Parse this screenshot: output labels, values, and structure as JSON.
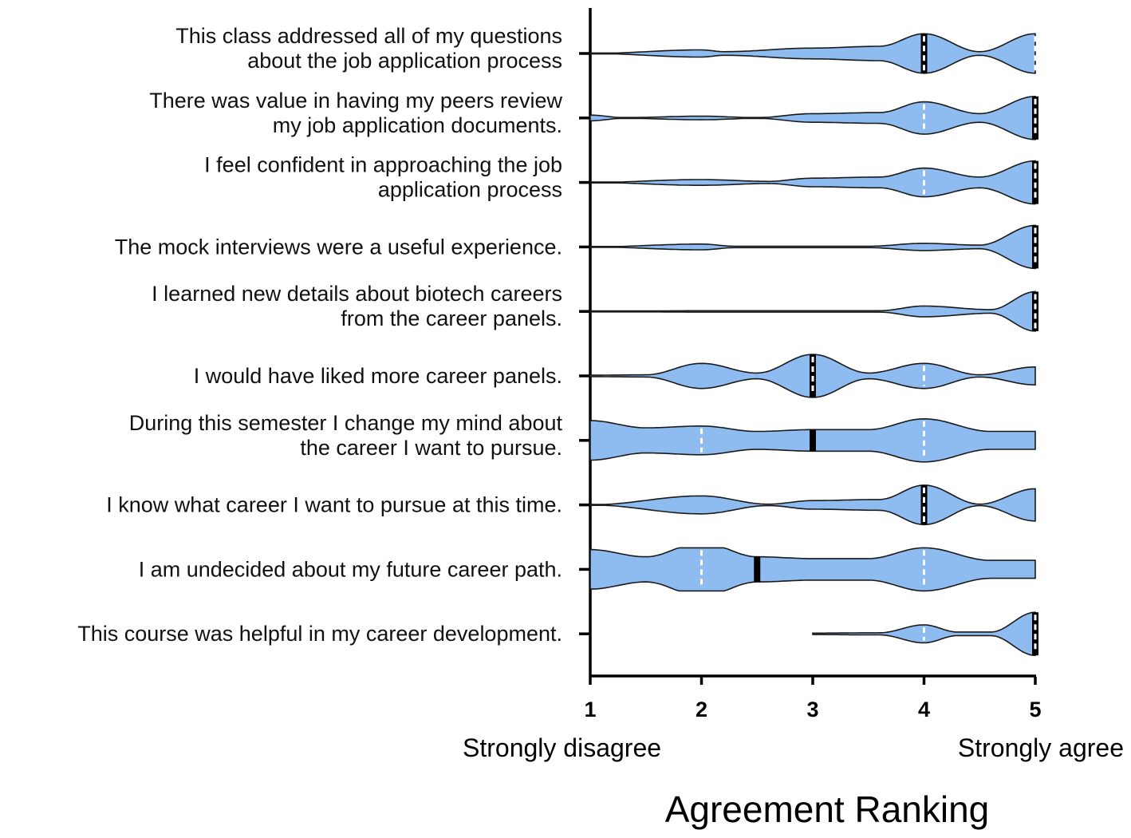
{
  "chart_data": {
    "type": "violin",
    "orientation": "horizontal",
    "xlabel": "Agreement Ranking",
    "xlim": [
      1,
      5
    ],
    "ticks": [
      "1",
      "2",
      "3",
      "4",
      "5"
    ],
    "anchors": {
      "low": "Strongly disagree",
      "high": "Strongly agree"
    },
    "colors": {
      "fill": "#8fbcf0",
      "stroke": "#1a1a1a",
      "median": "#000000",
      "quartile": "#ffffff"
    },
    "categories": [
      {
        "lines": [
          "This class addressed all of my questions",
          "about the job application process"
        ],
        "median": 4,
        "quartiles": [
          4,
          5
        ],
        "density": [
          [
            1,
            0
          ],
          [
            2,
            0.1
          ],
          [
            2.2,
            0.05
          ],
          [
            3,
            0.15
          ],
          [
            3.6,
            0.2
          ],
          [
            4,
            0.55
          ],
          [
            4.5,
            0.05
          ],
          [
            5,
            0.55
          ]
        ]
      },
      {
        "lines": [
          "There was value in having my peers review",
          "my job application documents."
        ],
        "median": 5,
        "quartiles": [
          4,
          5
        ],
        "density": [
          [
            1,
            0.08
          ],
          [
            1.3,
            0.01
          ],
          [
            2,
            0.05
          ],
          [
            2.5,
            0.01
          ],
          [
            3,
            0.12
          ],
          [
            3.6,
            0.15
          ],
          [
            4,
            0.45
          ],
          [
            4.5,
            0.12
          ],
          [
            5,
            0.6
          ]
        ]
      },
      {
        "lines": [
          "I feel confident in approaching the job",
          "application process"
        ],
        "median": 5,
        "quartiles": [
          4,
          5
        ],
        "density": [
          [
            1,
            0
          ],
          [
            2,
            0.08
          ],
          [
            2.6,
            0.03
          ],
          [
            3,
            0.12
          ],
          [
            3.6,
            0.15
          ],
          [
            4,
            0.4
          ],
          [
            4.5,
            0.15
          ],
          [
            5,
            0.6
          ]
        ]
      },
      {
        "lines": [
          "The mock interviews were a useful experience."
        ],
        "median": 5,
        "quartiles": [
          5,
          5
        ],
        "density": [
          [
            1,
            0
          ],
          [
            2,
            0.08
          ],
          [
            2.3,
            0.02
          ],
          [
            3.5,
            0.02
          ],
          [
            4,
            0.1
          ],
          [
            4.5,
            0.05
          ],
          [
            5,
            0.6
          ]
        ]
      },
      {
        "lines": [
          "I learned new details about biotech careers",
          "from the career panels."
        ],
        "median": 5,
        "quartiles": [
          5,
          5
        ],
        "density": [
          [
            1,
            0
          ],
          [
            2,
            0.02
          ],
          [
            3.6,
            0.02
          ],
          [
            4,
            0.15
          ],
          [
            4.6,
            0.05
          ],
          [
            5,
            0.55
          ]
        ]
      },
      {
        "lines": [
          "I would have liked more career panels."
        ],
        "median": 3,
        "quartiles": [
          3,
          4
        ],
        "density": [
          [
            1,
            0.02
          ],
          [
            1.5,
            0.03
          ],
          [
            2,
            0.35
          ],
          [
            2.5,
            0.08
          ],
          [
            3,
            0.6
          ],
          [
            3.5,
            0.08
          ],
          [
            4,
            0.35
          ],
          [
            4.5,
            0.03
          ],
          [
            5,
            0.25
          ]
        ]
      },
      {
        "lines": [
          "During this semester I change my mind about",
          "the career I want to pursue."
        ],
        "median": 3,
        "quartiles": [
          2,
          4
        ],
        "density": [
          [
            1,
            0.55
          ],
          [
            1.5,
            0.35
          ],
          [
            2,
            0.4
          ],
          [
            2.5,
            0.25
          ],
          [
            3,
            0.3
          ],
          [
            3.5,
            0.3
          ],
          [
            4,
            0.6
          ],
          [
            4.6,
            0.25
          ],
          [
            5,
            0.25
          ]
        ]
      },
      {
        "lines": [
          "I know what career I want to pursue at this time."
        ],
        "median": 4,
        "quartiles": [
          4,
          4
        ],
        "density": [
          [
            1,
            0
          ],
          [
            2,
            0.25
          ],
          [
            2.6,
            0.02
          ],
          [
            3,
            0.12
          ],
          [
            3.6,
            0.15
          ],
          [
            4,
            0.55
          ],
          [
            4.5,
            0.02
          ],
          [
            5,
            0.45
          ]
        ]
      },
      {
        "lines": [
          "I am undecided about my future career path."
        ],
        "median": 2.5,
        "quartiles": [
          2,
          4
        ],
        "density": [
          [
            1,
            0.55
          ],
          [
            1.5,
            0.35
          ],
          [
            2,
            0.75
          ],
          [
            2.5,
            0.35
          ],
          [
            3,
            0.3
          ],
          [
            3.5,
            0.3
          ],
          [
            4,
            0.6
          ],
          [
            4.6,
            0.25
          ],
          [
            5,
            0.25
          ]
        ]
      },
      {
        "lines": [
          "This course was helpful in my career development."
        ],
        "median": 5,
        "quartiles": [
          4,
          5
        ],
        "density": [
          [
            3,
            0.02
          ],
          [
            3.6,
            0.03
          ],
          [
            4,
            0.25
          ],
          [
            4.3,
            0.05
          ],
          [
            4.6,
            0.05
          ],
          [
            5,
            0.6
          ]
        ]
      }
    ]
  }
}
